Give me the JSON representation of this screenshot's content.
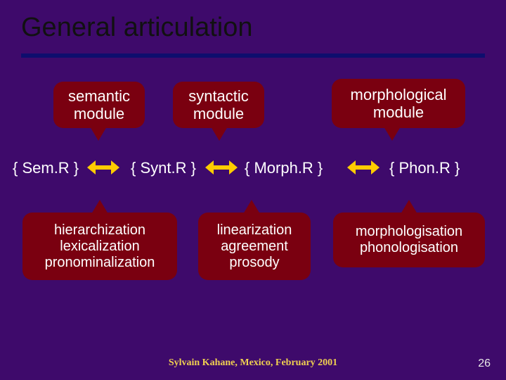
{
  "title": "General articulation",
  "footer": "Sylvain Kahane, Mexico, February 2001",
  "pageNumber": "26",
  "colors": {
    "background": "#3e0a6b",
    "titleText": "#111111",
    "rule": "#0e0e6e",
    "bubbleFill": "#7a0010",
    "bubbleText": "#ffffff",
    "levelText": "#ffffff",
    "arrow": "#ffcc00",
    "footerText": "#f0d050",
    "pageNumText": "#e8e8e8"
  },
  "topModules": [
    {
      "lines": [
        "semantic",
        "module"
      ]
    },
    {
      "lines": [
        "syntactic",
        "module"
      ]
    },
    {
      "lines": [
        "morphological",
        "module"
      ]
    }
  ],
  "levels": [
    "{ Sem.R }",
    "{ Synt.R }",
    "{ Morph.R }",
    "{ Phon.R }"
  ],
  "bottomModules": [
    {
      "lines": [
        "hierarchization",
        "lexicalization",
        "pronominalization"
      ]
    },
    {
      "lines": [
        "linearization",
        "agreement",
        "prosody"
      ]
    },
    {
      "lines": [
        "morphologisation",
        "phonologisation"
      ]
    }
  ]
}
